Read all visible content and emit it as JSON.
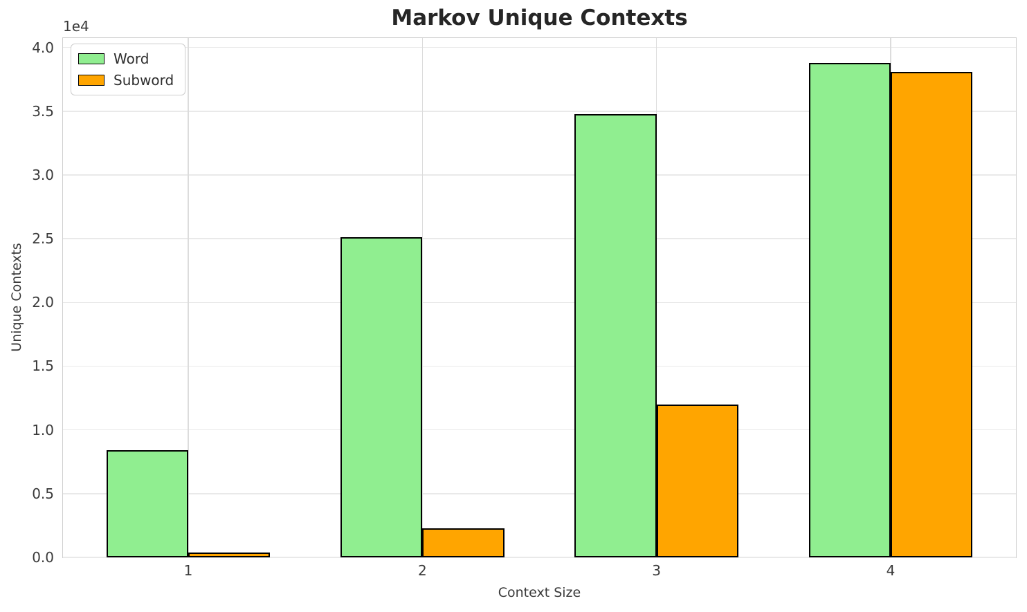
{
  "chart_data": {
    "type": "bar",
    "title": "Markov Unique Contexts",
    "xlabel": "Context Size",
    "ylabel": "Unique Contexts",
    "y_offset_text": "1e4",
    "categories": [
      "1",
      "2",
      "3",
      "4"
    ],
    "series": [
      {
        "name": "Word",
        "color": "#90EE90",
        "values": [
          8400,
          25100,
          34800,
          38800
        ]
      },
      {
        "name": "Subword",
        "color": "#FFA500",
        "values": [
          400,
          2300,
          12000,
          38100
        ]
      }
    ],
    "ylim": [
      0,
      40740
    ],
    "ytick_values": [
      0,
      5000,
      10000,
      15000,
      20000,
      25000,
      30000,
      35000,
      40000
    ],
    "ytick_labels": [
      "0.0",
      "0.5",
      "1.0",
      "1.5",
      "2.0",
      "2.5",
      "3.0",
      "3.5",
      "4.0"
    ],
    "bar_width_fraction": 0.35,
    "x_margin_fraction": 0.05,
    "grid": true,
    "legend_position": "upper left",
    "bar_edge_color": "#000000",
    "grid_color_horizontal": "#e9e9e9",
    "grid_color_vertical": "#dcdcdc"
  }
}
